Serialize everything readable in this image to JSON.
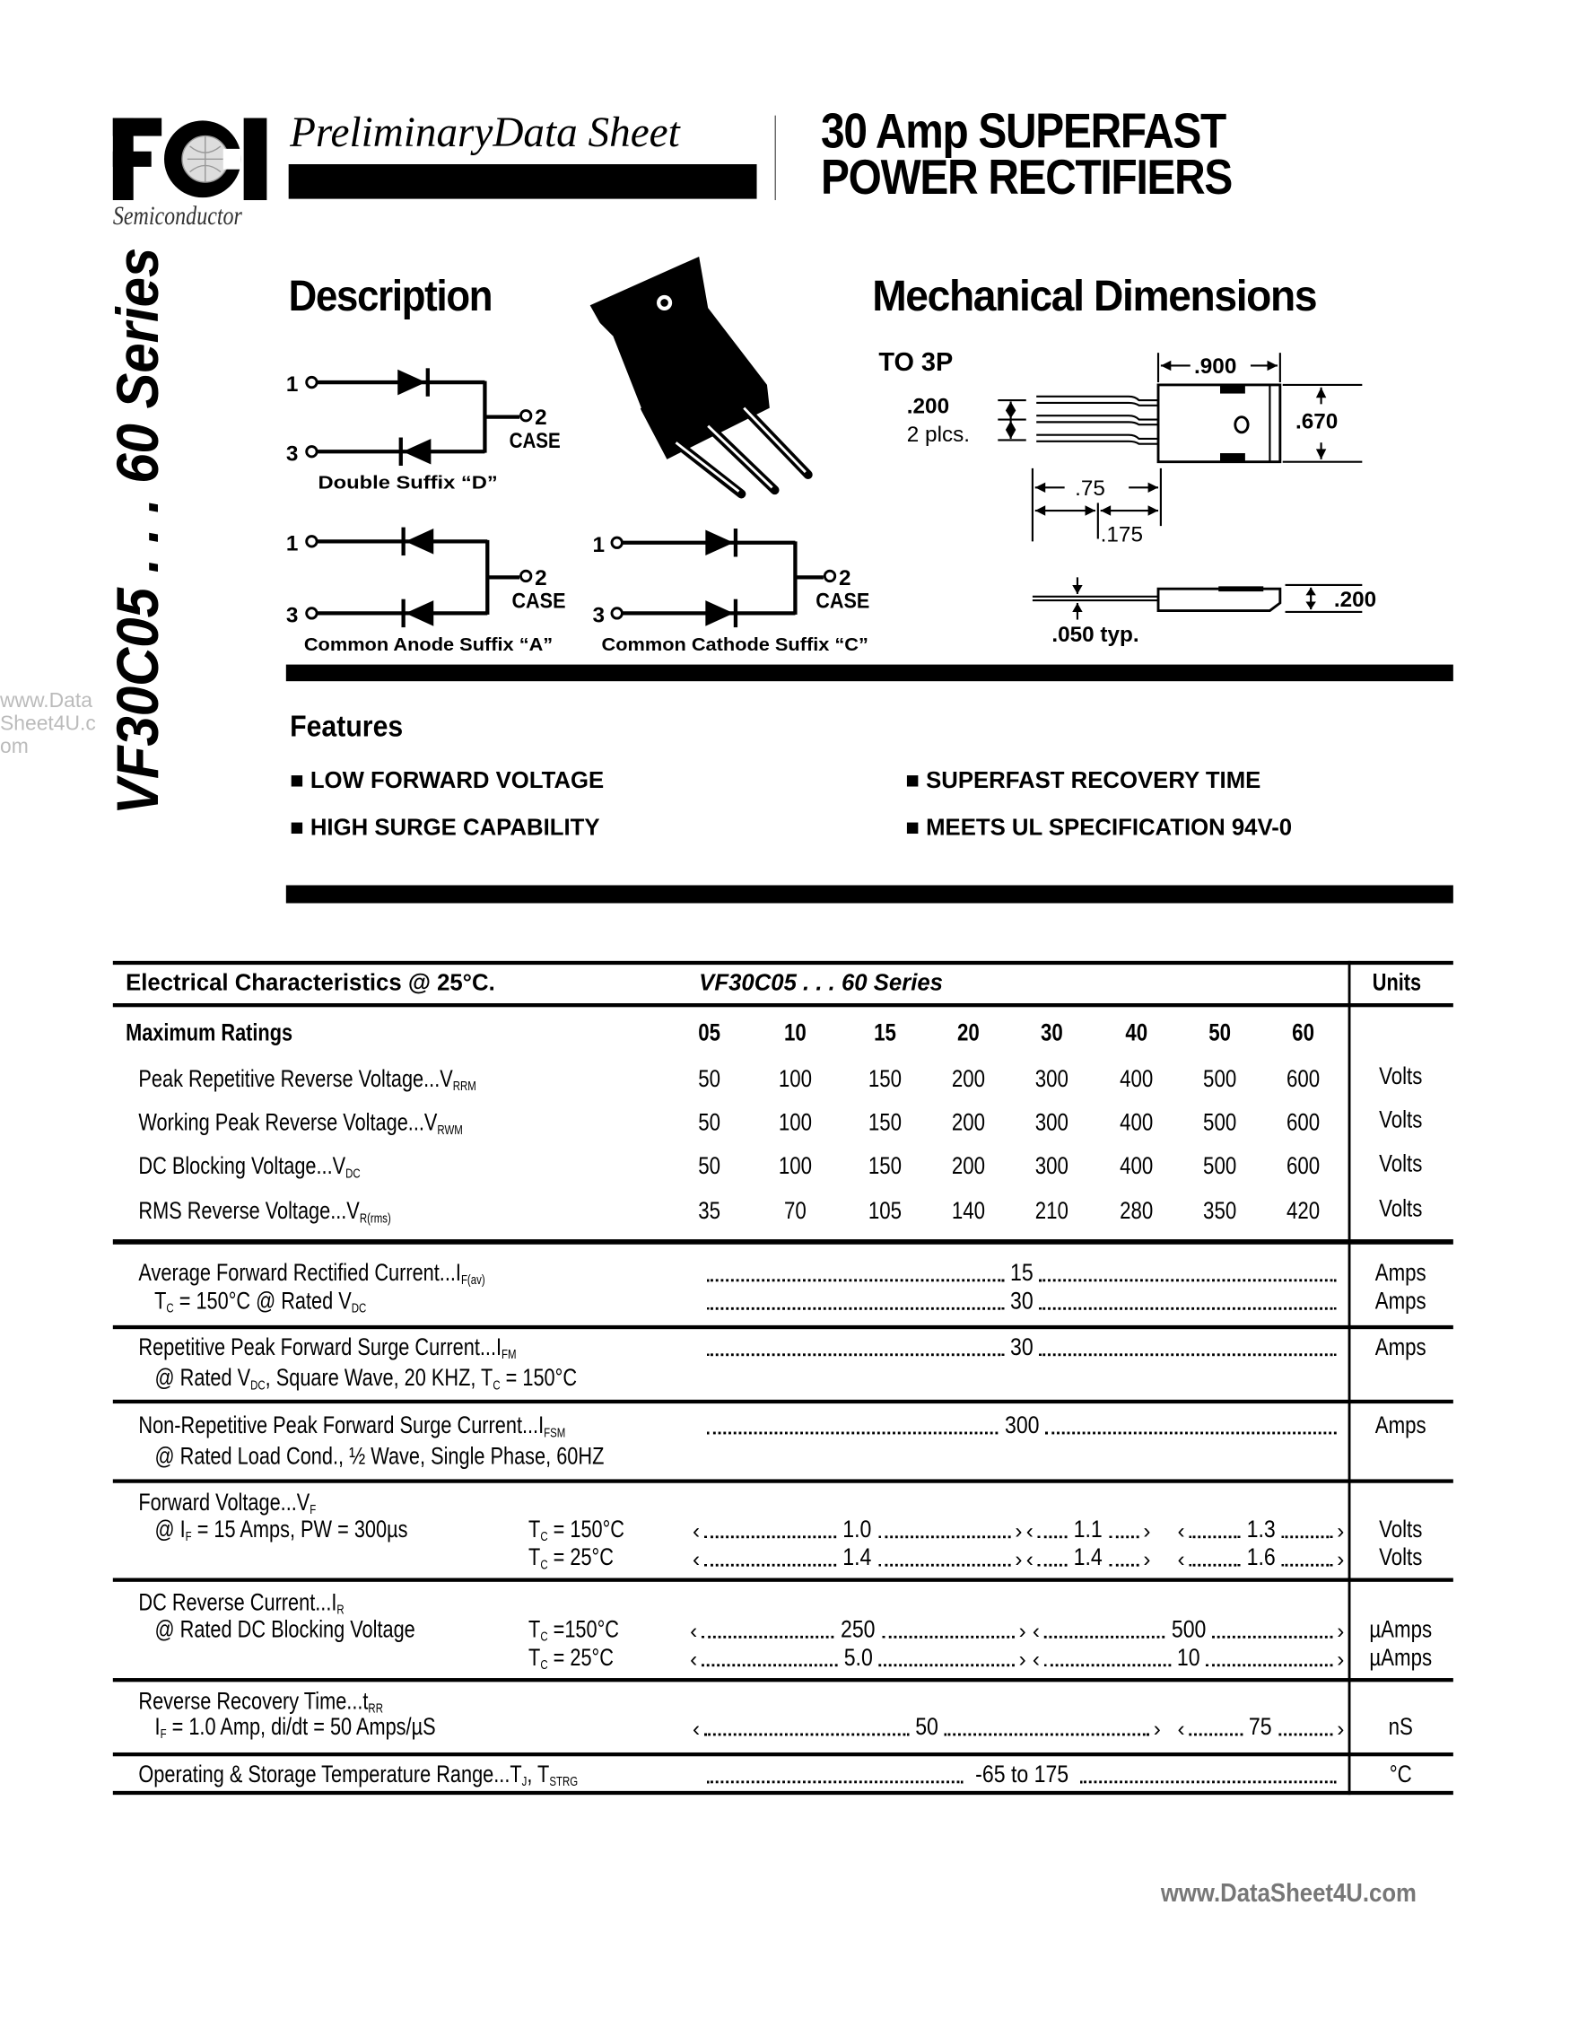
{
  "header": {
    "logo_text": "FCI",
    "logo_subtext": "Semiconductor",
    "doc_type": "PreliminaryData Sheet",
    "title_line1": "30 Amp SUPERFAST",
    "title_line2": "POWER RECTIFIERS"
  },
  "side_title": "VF30C05 . . . 60 Series",
  "watermark": "www.DataSheet4U.com",
  "description": {
    "heading": "Description",
    "double": {
      "pin1": "1",
      "pin2": "2",
      "pin3": "3",
      "case": "CASE",
      "label": "Double Suffix “D”"
    },
    "anode": {
      "pin1": "1",
      "pin2": "2",
      "pin3": "3",
      "case": "CASE",
      "label": "Common Anode  Suffix “A”"
    },
    "cathode": {
      "pin1": "1",
      "pin2": "2",
      "pin3": "3",
      "case": "CASE",
      "label": "Common Cathode  Suffix “C”"
    }
  },
  "mechanical": {
    "heading": "Mechanical Dimensions",
    "package": "TO 3P",
    "dim_width": ".900",
    "dim_height": ".670",
    "dim_pitch": ".200",
    "dim_pitch_note": "2 plcs.",
    "dim_lead": ".75",
    "dim_lead_short": ".175",
    "dim_lead_thickness": ".050 typ.",
    "dim_body_thickness": ".200"
  },
  "features": {
    "heading": "Features",
    "items": [
      "LOW FORWARD VOLTAGE",
      "SUPERFAST  RECOVERY  TIME",
      "HIGH SURGE CAPABILITY",
      "MEETS UL SPECIFICATION 94V-0"
    ]
  },
  "table": {
    "header_left": "Electrical Characteristics @ 25°C.",
    "header_series": "VF30C05 . . . 60 Series",
    "header_units": "Units",
    "ratings_label": "Maximum Ratings",
    "columns": [
      "05",
      "10",
      "15",
      "20",
      "30",
      "40",
      "50",
      "60"
    ],
    "ratings": [
      {
        "label": [
          {
            "t": "Peak Repetitive Reverse Voltage...V"
          },
          {
            "s": "RRM"
          }
        ],
        "values": [
          "50",
          "100",
          "150",
          "200",
          "300",
          "400",
          "500",
          "600"
        ],
        "unit": "Volts"
      },
      {
        "label": [
          {
            "t": "Working Peak Reverse Voltage...V"
          },
          {
            "s": "RWM"
          }
        ],
        "values": [
          "50",
          "100",
          "150",
          "200",
          "300",
          "400",
          "500",
          "600"
        ],
        "unit": "Volts"
      },
      {
        "label": [
          {
            "t": "DC Blocking Voltage...V"
          },
          {
            "s": "DC"
          }
        ],
        "values": [
          "50",
          "100",
          "150",
          "200",
          "300",
          "400",
          "500",
          "600"
        ],
        "unit": "Volts"
      },
      {
        "label": [
          {
            "t": "RMS Reverse Voltage...V"
          },
          {
            "s": "R(rms)"
          }
        ],
        "values": [
          "35",
          "70",
          "105",
          "140",
          "210",
          "280",
          "350",
          "420"
        ],
        "unit": "Volts"
      }
    ],
    "characteristics": [
      {
        "lines": [
          [
            {
              "t": "Average Forward Rectified Current...I"
            },
            {
              "s": "F(av)"
            }
          ],
          [
            {
              "t": "   T"
            },
            {
              "s": "C"
            },
            {
              "t": " = 150°C @ Rated V"
            },
            {
              "s": "DC"
            }
          ]
        ],
        "values": [
          {
            "line": 0,
            "groups": [
              "15"
            ],
            "unit": "Amps"
          },
          {
            "line": 1,
            "groups": [
              "30"
            ],
            "unit": "Amps"
          }
        ]
      },
      {
        "lines": [
          [
            {
              "t": "Repetitive Peak Forward Surge Current...I"
            },
            {
              "s": "FM"
            }
          ],
          [
            {
              "t": "   @ Rated V"
            },
            {
              "s": "DC"
            },
            {
              "t": ", Square Wave, 20 KHZ, T"
            },
            {
              "s": "C"
            },
            {
              "t": " = 150°C"
            }
          ]
        ],
        "values": [
          {
            "line": 0,
            "groups": [
              "30"
            ],
            "unit": "Amps"
          }
        ]
      },
      {
        "lines": [
          [
            {
              "t": "Non-Repetitive Peak Forward Surge Current...I"
            },
            {
              "s": "FSM"
            }
          ],
          [
            {
              "t": "   @ Rated Load Cond., ½ Wave, Single Phase, 60HZ"
            }
          ]
        ],
        "values": [
          {
            "line": 0,
            "groups": [
              "300"
            ],
            "unit": "Amps"
          }
        ]
      },
      {
        "lines": [
          [
            {
              "t": "Forward Voltage...V"
            },
            {
              "s": "F"
            }
          ],
          [
            {
              "t": "   @ I"
            },
            {
              "s": "F"
            },
            {
              "t": " = 15 Amps, PW = 300µs"
            }
          ],
          []
        ],
        "conditions": [
          {
            "line": 1,
            "parts": [
              {
                "t": "T"
              },
              {
                "s": "C"
              },
              {
                "t": " = 150°C"
              }
            ]
          },
          {
            "line": 2,
            "parts": [
              {
                "t": "T"
              },
              {
                "s": "C"
              },
              {
                "t": " = 25°C"
              }
            ]
          }
        ],
        "values": [
          {
            "line": 1,
            "groups": [
              "1.0",
              "1.1",
              "1.3"
            ],
            "unit": "Volts"
          },
          {
            "line": 2,
            "groups": [
              "1.4",
              "1.4",
              "1.6"
            ],
            "unit": "Volts"
          }
        ]
      },
      {
        "lines": [
          [
            {
              "t": "DC Reverse Current...I"
            },
            {
              "s": "R"
            }
          ],
          [
            {
              "t": "   @ Rated DC Blocking Voltage"
            }
          ],
          []
        ],
        "conditions": [
          {
            "line": 1,
            "parts": [
              {
                "t": "T"
              },
              {
                "s": "C"
              },
              {
                "t": " =150°C"
              }
            ]
          },
          {
            "line": 2,
            "parts": [
              {
                "t": "T"
              },
              {
                "s": "C"
              },
              {
                "t": " = 25°C"
              }
            ]
          }
        ],
        "values": [
          {
            "line": 1,
            "groups": [
              "250",
              "500"
            ],
            "unit": "µAmps"
          },
          {
            "line": 2,
            "groups": [
              "5.0",
              "10"
            ],
            "unit": "µAmps"
          }
        ]
      },
      {
        "lines": [
          [
            {
              "t": "Reverse Recovery Time...t"
            },
            {
              "s": "RR"
            }
          ],
          [
            {
              "t": "   I"
            },
            {
              "s": "F"
            },
            {
              "t": " = 1.0 Amp, di/dt = 50 Amps/µS"
            }
          ]
        ],
        "values": [
          {
            "line": 1,
            "groups": [
              "50",
              "75"
            ],
            "unit": "nS"
          }
        ]
      },
      {
        "lines": [
          [
            {
              "t": "Operating & Storage Temperature Range...T"
            },
            {
              "s": "J"
            },
            {
              "t": ", T"
            },
            {
              "s": "STRG"
            }
          ]
        ],
        "values": [
          {
            "line": 0,
            "groups": [
              "-65 to 175"
            ],
            "unit": "°C"
          }
        ]
      }
    ]
  },
  "footer": {
    "watermark": "www.DataSheet4U.com"
  }
}
